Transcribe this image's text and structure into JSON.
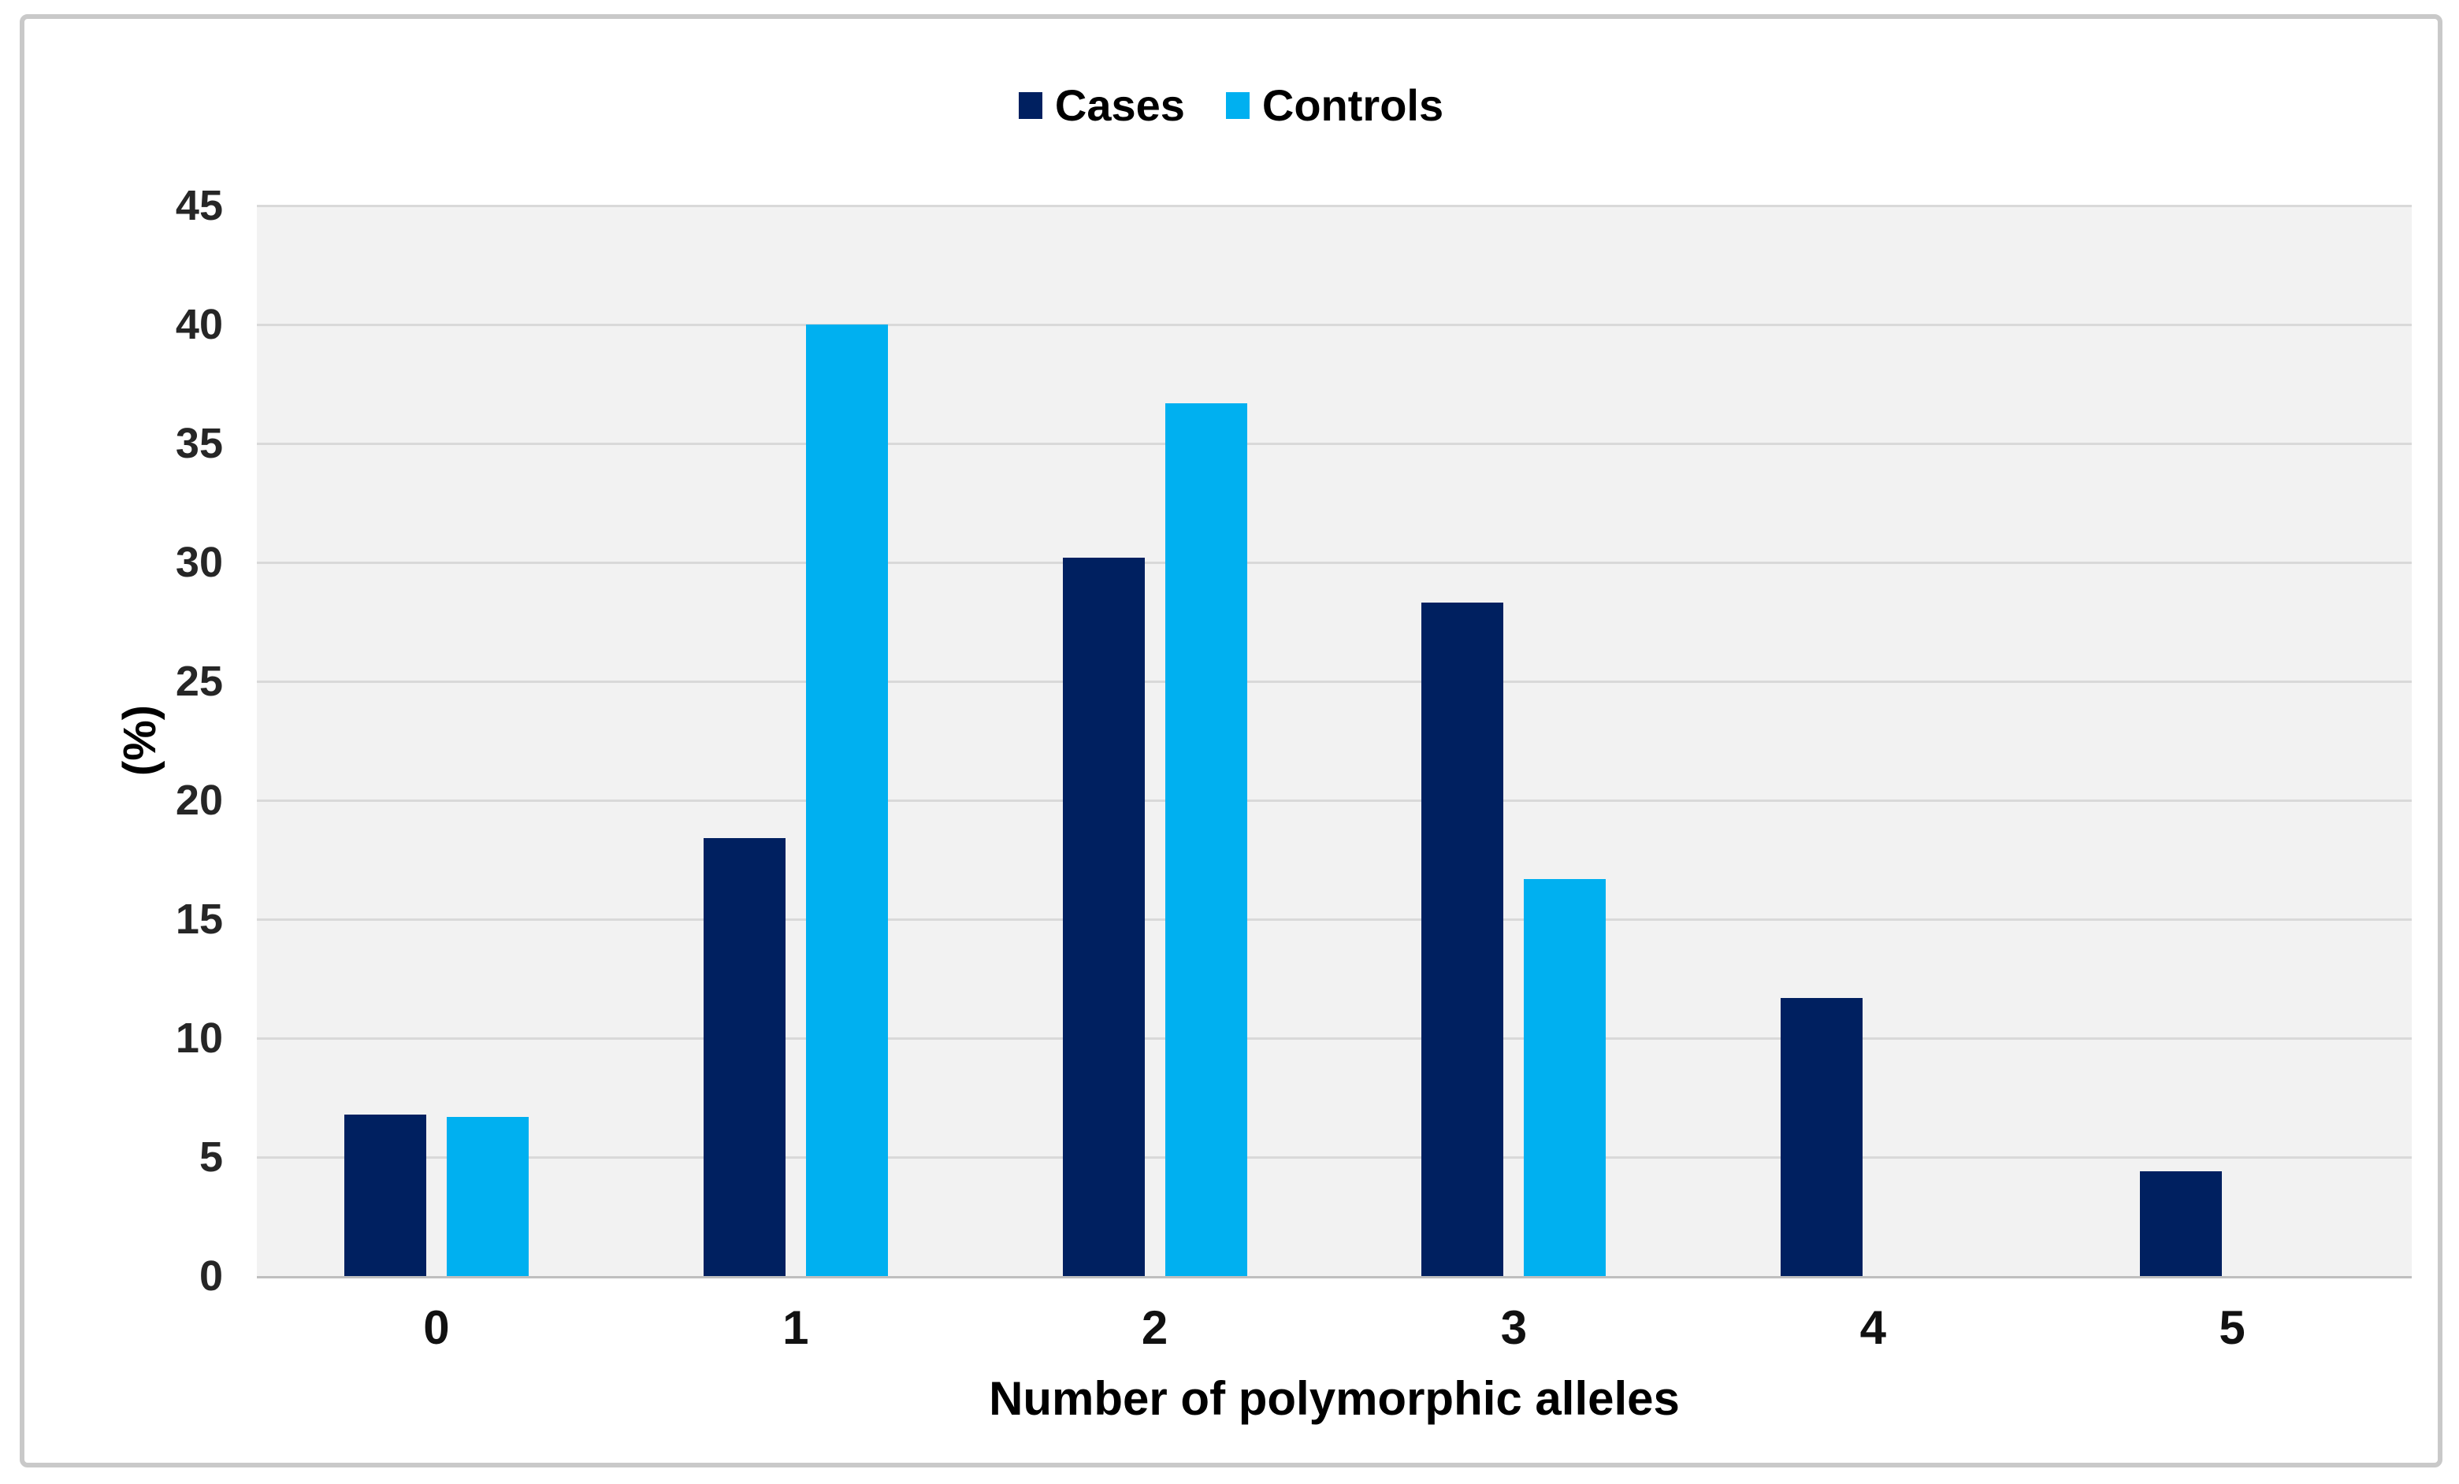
{
  "chart_data": {
    "type": "bar",
    "title": "",
    "categories": [
      "0",
      "1",
      "2",
      "3",
      "4",
      "5"
    ],
    "series": [
      {
        "name": "Cases",
        "color": "#002060",
        "values": [
          6.8,
          18.4,
          30.2,
          28.3,
          11.7,
          4.4
        ]
      },
      {
        "name": "Controls",
        "color": "#00b0f0",
        "values": [
          6.7,
          40.0,
          36.7,
          16.7,
          0,
          0
        ]
      }
    ],
    "xlabel": "Number of polymorphic alleles",
    "ylabel": "(%)",
    "ylim": [
      0,
      45
    ],
    "ytick_step": 5,
    "grid": true,
    "legend_position": "top-center"
  },
  "colors": {
    "plot_background": "#f2f2f2",
    "gridline": "#d9d9d9",
    "baseline": "#bfbfbf",
    "figure_border": "#c9c9c9",
    "tick_text": "#262626",
    "label_text": "#000000"
  }
}
